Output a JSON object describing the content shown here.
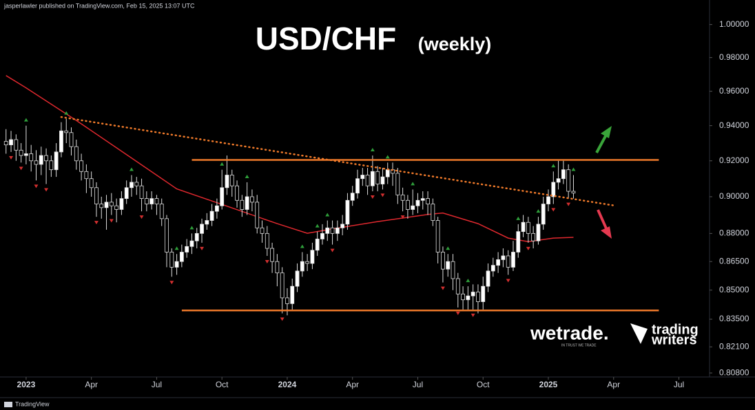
{
  "header": {
    "byline": "jasperlawler published on TradingView.com, Feb 15, 2025 13:07 UTC"
  },
  "branding": {
    "wetrade": "wetrade.",
    "wetrade_tagline": "IN TRUST WE TRADE",
    "trading": "trading",
    "writers": "writers",
    "footer": "TradingView"
  },
  "chart_data": {
    "type": "candlestick",
    "title": "USD/CHF",
    "subtitle": "(weekly)",
    "log": true,
    "up_color": "#ffffff",
    "down_color": "#000000",
    "x": [
      -4,
      -3,
      -2,
      -1,
      0,
      1,
      2,
      3,
      4,
      5,
      6,
      7,
      8,
      9,
      10,
      11,
      12,
      13,
      14,
      15,
      16,
      17,
      18,
      19,
      20,
      21,
      22,
      23,
      24,
      25,
      26,
      27,
      28,
      29,
      30,
      31,
      32,
      33,
      34,
      35,
      36,
      37,
      38,
      39,
      40,
      41,
      42,
      43,
      44,
      45,
      46,
      47,
      48,
      49,
      50,
      51,
      52,
      53,
      54,
      55,
      56,
      57,
      58,
      59,
      60,
      61,
      62,
      63,
      64,
      65,
      66,
      67,
      68,
      69,
      70,
      71,
      72,
      73,
      74,
      75,
      76,
      77,
      78,
      79,
      80,
      81,
      82,
      83,
      84,
      85,
      86,
      87,
      88,
      89,
      90,
      91,
      92,
      93,
      94,
      95,
      96,
      97,
      98,
      99,
      100,
      101,
      102,
      103,
      104,
      105,
      106,
      107,
      108,
      109
    ],
    "open": [
      0.931,
      0.929,
      0.932,
      0.926,
      0.923,
      0.924,
      0.92,
      0.918,
      0.923,
      0.92,
      0.915,
      0.925,
      0.937,
      0.936,
      0.928,
      0.92,
      0.914,
      0.91,
      0.905,
      0.896,
      0.894,
      0.897,
      0.895,
      0.893,
      0.899,
      0.905,
      0.908,
      0.906,
      0.899,
      0.896,
      0.899,
      0.896,
      0.888,
      0.87,
      0.862,
      0.865,
      0.87,
      0.873,
      0.876,
      0.88,
      0.885,
      0.887,
      0.892,
      0.895,
      0.905,
      0.912,
      0.906,
      0.898,
      0.893,
      0.9,
      0.897,
      0.883,
      0.88,
      0.872,
      0.865,
      0.859,
      0.846,
      0.843,
      0.852,
      0.86,
      0.865,
      0.864,
      0.871,
      0.877,
      0.88,
      0.883,
      0.88,
      0.883,
      0.885,
      0.898,
      0.902,
      0.91,
      0.912,
      0.906,
      0.914,
      0.907,
      0.911,
      0.915,
      0.913,
      0.901,
      0.898,
      0.893,
      0.895,
      0.898,
      0.899,
      0.896,
      0.887,
      0.87,
      0.861,
      0.865,
      0.856,
      0.848,
      0.845,
      0.847,
      0.849,
      0.844,
      0.852,
      0.86,
      0.863,
      0.866,
      0.868,
      0.862,
      0.87,
      0.881,
      0.886,
      0.88,
      0.876,
      0.885,
      0.896,
      0.9,
      0.908,
      0.91,
      0.915,
      0.903
    ],
    "high": [
      0.938,
      0.937,
      0.935,
      0.93,
      0.94,
      0.929,
      0.926,
      0.928,
      0.927,
      0.923,
      0.93,
      0.942,
      0.944,
      0.939,
      0.932,
      0.924,
      0.918,
      0.914,
      0.908,
      0.9,
      0.901,
      0.902,
      0.899,
      0.903,
      0.909,
      0.912,
      0.911,
      0.91,
      0.903,
      0.903,
      0.901,
      0.899,
      0.89,
      0.872,
      0.869,
      0.874,
      0.877,
      0.88,
      0.883,
      0.888,
      0.891,
      0.896,
      0.899,
      0.915,
      0.923,
      0.915,
      0.909,
      0.901,
      0.908,
      0.904,
      0.901,
      0.887,
      0.884,
      0.875,
      0.869,
      0.862,
      0.851,
      0.856,
      0.864,
      0.87,
      0.869,
      0.875,
      0.881,
      0.885,
      0.887,
      0.887,
      0.887,
      0.89,
      0.902,
      0.906,
      0.915,
      0.916,
      0.916,
      0.923,
      0.917,
      0.916,
      0.919,
      0.919,
      0.916,
      0.905,
      0.901,
      0.904,
      0.902,
      0.903,
      0.903,
      0.899,
      0.889,
      0.873,
      0.869,
      0.869,
      0.859,
      0.852,
      0.852,
      0.853,
      0.853,
      0.857,
      0.864,
      0.867,
      0.87,
      0.872,
      0.871,
      0.876,
      0.885,
      0.89,
      0.889,
      0.884,
      0.889,
      0.9,
      0.904,
      0.914,
      0.92,
      0.92,
      0.918,
      0.912
    ],
    "low": [
      0.924,
      0.925,
      0.92,
      0.919,
      0.918,
      0.914,
      0.909,
      0.912,
      0.907,
      0.911,
      0.911,
      0.922,
      0.93,
      0.923,
      0.915,
      0.909,
      0.902,
      0.9,
      0.889,
      0.888,
      0.882,
      0.89,
      0.886,
      0.89,
      0.896,
      0.9,
      0.901,
      0.892,
      0.892,
      0.893,
      0.89,
      0.884,
      0.862,
      0.857,
      0.858,
      0.862,
      0.867,
      0.869,
      0.872,
      0.875,
      0.882,
      0.884,
      0.888,
      0.893,
      0.901,
      0.9,
      0.894,
      0.889,
      0.89,
      0.892,
      0.88,
      0.875,
      0.868,
      0.859,
      0.852,
      0.838,
      0.837,
      0.84,
      0.849,
      0.857,
      0.86,
      0.861,
      0.868,
      0.874,
      0.876,
      0.874,
      0.876,
      0.879,
      0.882,
      0.895,
      0.899,
      0.906,
      0.901,
      0.903,
      0.903,
      0.904,
      0.907,
      0.906,
      0.896,
      0.892,
      0.888,
      0.89,
      0.891,
      0.893,
      0.89,
      0.884,
      0.864,
      0.854,
      0.857,
      0.85,
      0.841,
      0.84,
      0.84,
      0.84,
      0.838,
      0.84,
      0.849,
      0.857,
      0.859,
      0.862,
      0.858,
      0.86,
      0.867,
      0.878,
      0.875,
      0.872,
      0.874,
      0.882,
      0.892,
      0.896,
      0.904,
      0.907,
      0.899,
      0.899
    ],
    "close": [
      0.929,
      0.932,
      0.926,
      0.923,
      0.924,
      0.92,
      0.918,
      0.923,
      0.92,
      0.915,
      0.925,
      0.937,
      0.936,
      0.928,
      0.92,
      0.914,
      0.91,
      0.905,
      0.896,
      0.894,
      0.897,
      0.895,
      0.893,
      0.899,
      0.905,
      0.908,
      0.906,
      0.899,
      0.896,
      0.899,
      0.896,
      0.888,
      0.87,
      0.862,
      0.865,
      0.87,
      0.873,
      0.876,
      0.88,
      0.885,
      0.887,
      0.892,
      0.895,
      0.905,
      0.912,
      0.906,
      0.898,
      0.893,
      0.9,
      0.897,
      0.883,
      0.88,
      0.872,
      0.865,
      0.859,
      0.846,
      0.843,
      0.852,
      0.86,
      0.865,
      0.864,
      0.871,
      0.877,
      0.88,
      0.883,
      0.88,
      0.883,
      0.885,
      0.898,
      0.902,
      0.91,
      0.912,
      0.906,
      0.914,
      0.907,
      0.911,
      0.915,
      0.913,
      0.901,
      0.898,
      0.893,
      0.895,
      0.898,
      0.899,
      0.896,
      0.887,
      0.87,
      0.861,
      0.865,
      0.856,
      0.848,
      0.845,
      0.847,
      0.849,
      0.844,
      0.852,
      0.86,
      0.863,
      0.866,
      0.868,
      0.862,
      0.87,
      0.881,
      0.886,
      0.88,
      0.876,
      0.885,
      0.896,
      0.9,
      0.908,
      0.91,
      0.915,
      0.903,
      0.902
    ],
    "ma": {
      "color": "#e0282e",
      "x": [
        -4,
        0,
        10,
        20,
        30,
        40,
        50,
        56,
        60,
        70,
        80,
        83,
        90,
        96,
        100,
        105,
        109
      ],
      "values": [
        0.9693,
        0.962,
        0.943,
        0.9235,
        0.9043,
        0.8948,
        0.8853,
        0.8801,
        0.882,
        0.8864,
        0.8903,
        0.8911,
        0.8853,
        0.8775,
        0.8756,
        0.8775,
        0.8779
      ]
    },
    "lines": [
      {
        "color": "#f07a2a",
        "style": "solid",
        "x": [
          33,
          126
        ],
        "values": [
          0.9205,
          0.9205
        ]
      },
      {
        "color": "#f07a2a",
        "style": "solid",
        "x": [
          31,
          126
        ],
        "values": [
          0.8395,
          0.8395
        ]
      },
      {
        "color": "#f07a2a",
        "style": "dotted",
        "x": [
          7,
          117.5
        ],
        "values": [
          0.945,
          0.895
        ]
      }
    ],
    "pivot_high_color": "#2e9e3a",
    "pivot_low_color": "#d32f2f",
    "pivot_highs": [
      0,
      8,
      21,
      30,
      33,
      39,
      44,
      55,
      58,
      60,
      69,
      72,
      77,
      84,
      88,
      98,
      102,
      105,
      109
    ],
    "pivot_lows": [
      -3,
      -1,
      2,
      4,
      14,
      17,
      23,
      29,
      35,
      48,
      51,
      61,
      69,
      71,
      75,
      83,
      86,
      89,
      96,
      100,
      105,
      108
    ],
    "xlim": [
      -5.2,
      136.1
    ],
    "xticks": [
      {
        "value": 0,
        "label": "2023"
      },
      {
        "value": 13,
        "label": "Apr"
      },
      {
        "value": 26,
        "label": "Jul"
      },
      {
        "value": 39,
        "label": "Oct"
      },
      {
        "value": 52,
        "label": "2024"
      },
      {
        "value": 65,
        "label": "Apr"
      },
      {
        "value": 78,
        "label": "Jul"
      },
      {
        "value": 91,
        "label": "Oct"
      },
      {
        "value": 104,
        "label": "2025"
      },
      {
        "value": 117,
        "label": "Apr"
      },
      {
        "value": 130,
        "label": "Jul"
      }
    ],
    "ylim": [
      0.806,
      1.013
    ],
    "yticks": [
      {
        "value": 1.0,
        "label": "1.00000"
      },
      {
        "value": 0.98,
        "label": "0.98000"
      },
      {
        "value": 0.96,
        "label": "0.96000"
      },
      {
        "value": 0.94,
        "label": "0.94000"
      },
      {
        "value": 0.92,
        "label": "0.92000"
      },
      {
        "value": 0.9,
        "label": "0.90000"
      },
      {
        "value": 0.88,
        "label": "0.88000"
      },
      {
        "value": 0.865,
        "label": "0.86500"
      },
      {
        "value": 0.85,
        "label": "0.85000"
      },
      {
        "value": 0.835,
        "label": "0.83500"
      },
      {
        "value": 0.821,
        "label": "0.82100"
      },
      {
        "value": 0.808,
        "label": "0.80800"
      }
    ]
  }
}
